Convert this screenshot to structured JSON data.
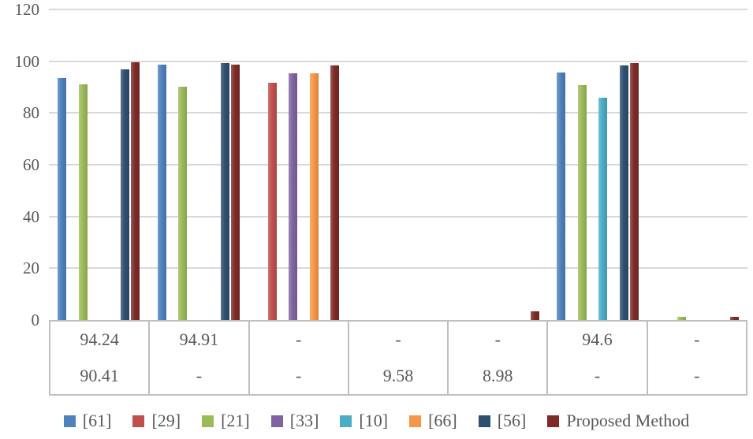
{
  "chart_data": {
    "type": "bar",
    "title": "",
    "categories": [
      "",
      "",
      "",
      "",
      "",
      "",
      ""
    ],
    "y_axis": {
      "min": 0,
      "max": 120,
      "step": 20,
      "ticks": [
        0,
        20,
        40,
        60,
        80,
        100,
        120
      ]
    },
    "grid": true,
    "legend_position": "bottom",
    "series": [
      {
        "name": "[61]",
        "color": "#4F81BD",
        "values": [
          93.5,
          98.6,
          null,
          null,
          null,
          95.7,
          null
        ]
      },
      {
        "name": "[29]",
        "color": "#C0504D",
        "values": [
          null,
          null,
          91.7,
          null,
          null,
          null,
          null
        ]
      },
      {
        "name": "[21]",
        "color": "#9BBB59",
        "values": [
          91,
          90.2,
          null,
          null,
          null,
          90.7,
          1.2
        ]
      },
      {
        "name": "[33]",
        "color": "#8064A2",
        "values": [
          null,
          null,
          95.2,
          null,
          null,
          null,
          null
        ]
      },
      {
        "name": "[10]",
        "color": "#4BACC6",
        "values": [
          null,
          null,
          null,
          null,
          null,
          86,
          null
        ]
      },
      {
        "name": "[66]",
        "color": "#F79646",
        "values": [
          null,
          null,
          95.2,
          null,
          null,
          null,
          null
        ]
      },
      {
        "name": "[56]",
        "color": "#2E5070",
        "values": [
          96.9,
          99.2,
          null,
          null,
          null,
          98.3,
          null
        ]
      },
      {
        "name": "Proposed Method",
        "color": "#7E2B28",
        "values": [
          99.7,
          98.6,
          98.5,
          null,
          3.5,
          99.3,
          1.3
        ]
      }
    ],
    "data_table": {
      "rows": [
        [
          "94.24",
          "94.91",
          "-",
          "-",
          "-",
          "94.6",
          "-"
        ],
        [
          "90.41",
          "-",
          "-",
          "9.58",
          "8.98",
          "-",
          "-"
        ]
      ]
    },
    "colors": {
      "gridline": "#D9D9D9",
      "axis_border": "#BFBFBF",
      "text": "#595959",
      "background": "#FFFFFF"
    }
  }
}
